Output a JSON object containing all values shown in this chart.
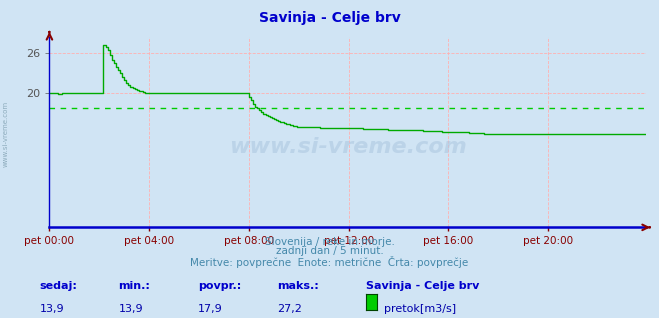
{
  "title": "Savinja - Celje brv",
  "title_color": "#0000cc",
  "bg_color": "#d0e4f4",
  "plot_bg_color": "#d0e4f4",
  "line_color": "#00aa00",
  "avg_line_color": "#00cc00",
  "avg_value": 17.9,
  "y_axis_min": 0.0,
  "y_axis_max": 28.5,
  "y_ticks": [
    20,
    26
  ],
  "x_ticks_labels": [
    "pet 00:00",
    "pet 04:00",
    "pet 08:00",
    "pet 12:00",
    "pet 16:00",
    "pet 20:00"
  ],
  "x_ticks_pos": [
    0,
    48,
    96,
    144,
    192,
    240
  ],
  "total_points": 288,
  "grid_color": "#ffb0b0",
  "axis_color": "#0000cc",
  "tick_color": "#880000",
  "subtitle1": "Slovenija / reke in morje.",
  "subtitle2": "zadnji dan / 5 minut.",
  "subtitle3": "Meritve: povprečne  Enote: metrične  Črta: povprečje",
  "subtitle_color": "#4488aa",
  "footer_label1": "sedaj:",
  "footer_label2": "min.:",
  "footer_label3": "povpr.:",
  "footer_label4": "maks.:",
  "footer_val1": "13,9",
  "footer_val2": "13,9",
  "footer_val3": "17,9",
  "footer_val4": "27,2",
  "footer_series": "Savinja - Celje brv",
  "footer_legend": "pretok[m3/s]",
  "footer_color_label": "#0000cc",
  "footer_color_val": "#0000aa",
  "watermark": "www.si-vreme.com",
  "data_y": [
    20.1,
    20.1,
    20.1,
    20.0,
    19.9,
    19.9,
    20.0,
    20.1,
    20.1,
    20.1,
    20.1,
    20.1,
    20.1,
    20.1,
    20.1,
    20.1,
    20.1,
    20.0,
    20.0,
    20.0,
    20.0,
    20.0,
    20.0,
    20.1,
    20.1,
    20.1,
    27.2,
    27.0,
    26.5,
    25.8,
    25.0,
    24.5,
    24.0,
    23.5,
    23.0,
    22.5,
    22.0,
    21.5,
    21.3,
    21.0,
    20.8,
    20.6,
    20.5,
    20.4,
    20.3,
    20.2,
    20.1,
    20.0,
    20.0,
    20.0,
    20.0,
    20.0,
    20.0,
    20.0,
    20.0,
    20.0,
    20.0,
    20.0,
    20.0,
    20.0,
    20.0,
    20.0,
    20.0,
    20.0,
    20.0,
    20.0,
    20.0,
    20.0,
    20.0,
    20.0,
    20.0,
    20.0,
    20.0,
    20.0,
    20.0,
    20.0,
    20.0,
    20.0,
    20.0,
    20.0,
    20.0,
    20.0,
    20.0,
    20.0,
    20.0,
    20.0,
    20.0,
    20.0,
    20.0,
    20.0,
    20.0,
    20.0,
    20.0,
    20.0,
    20.0,
    20.0,
    19.5,
    19.0,
    18.5,
    18.0,
    17.8,
    17.5,
    17.3,
    17.0,
    16.8,
    16.6,
    16.5,
    16.3,
    16.2,
    16.0,
    15.9,
    15.8,
    15.7,
    15.6,
    15.5,
    15.4,
    15.3,
    15.2,
    15.1,
    15.0,
    15.0,
    15.0,
    15.0,
    15.0,
    15.0,
    15.0,
    15.0,
    15.0,
    15.0,
    15.0,
    14.9,
    14.9,
    14.9,
    14.9,
    14.9,
    14.9,
    14.9,
    14.9,
    14.9,
    14.9,
    14.9,
    14.8,
    14.8,
    14.8,
    14.8,
    14.8,
    14.8,
    14.8,
    14.8,
    14.8,
    14.8,
    14.7,
    14.7,
    14.7,
    14.7,
    14.7,
    14.7,
    14.7,
    14.7,
    14.7,
    14.7,
    14.7,
    14.7,
    14.6,
    14.6,
    14.6,
    14.6,
    14.6,
    14.6,
    14.6,
    14.6,
    14.6,
    14.6,
    14.5,
    14.5,
    14.5,
    14.5,
    14.5,
    14.5,
    14.5,
    14.4,
    14.4,
    14.4,
    14.4,
    14.4,
    14.4,
    14.4,
    14.4,
    14.4,
    14.3,
    14.3,
    14.3,
    14.3,
    14.3,
    14.3,
    14.3,
    14.2,
    14.2,
    14.2,
    14.2,
    14.2,
    14.2,
    14.1,
    14.1,
    14.1,
    14.1,
    14.1,
    14.1,
    14.1,
    14.0,
    14.0,
    14.0,
    14.0,
    14.0,
    14.0,
    14.0,
    14.0,
    14.0,
    14.0,
    14.0,
    14.0,
    14.0,
    14.0,
    14.0,
    14.0,
    14.0,
    14.0,
    14.0,
    14.0,
    14.0,
    13.9,
    13.9,
    13.9,
    13.9,
    13.9,
    13.9,
    13.9,
    13.9,
    13.9,
    13.9,
    13.9,
    13.9,
    13.9,
    13.9,
    13.9,
    13.9,
    13.9,
    13.9,
    13.9,
    13.9,
    13.9,
    13.9,
    13.9,
    13.9,
    13.9,
    13.9,
    13.9,
    13.9,
    13.9,
    13.9,
    13.9,
    13.9,
    13.9,
    13.9,
    13.9,
    13.9,
    13.9,
    13.9,
    13.9,
    13.9,
    13.9,
    13.9,
    13.9,
    13.9,
    13.9,
    13.9,
    13.9,
    13.9,
    13.9,
    13.9,
    13.9,
    13.9,
    13.9,
    13.9,
    13.9,
    13.9,
    13.9,
    13.9
  ]
}
